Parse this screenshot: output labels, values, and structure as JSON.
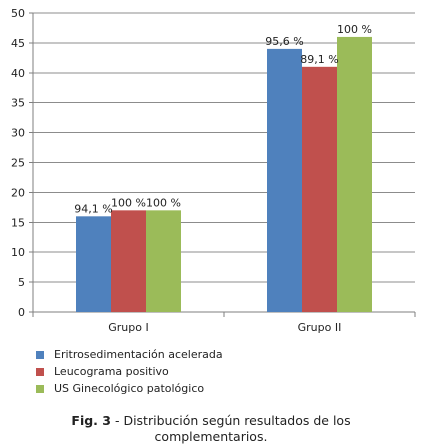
{
  "chart_data": {
    "type": "bar",
    "categories": [
      "Grupo I",
      "Grupo II"
    ],
    "series": [
      {
        "name": "Eritrosedimentación acelerada",
        "values": [
          16,
          44
        ],
        "labels": [
          "94,1 %",
          "95,6 %"
        ]
      },
      {
        "name": "Leucograma positivo",
        "values": [
          17,
          41
        ],
        "labels": [
          "100 %",
          "89,1 %"
        ]
      },
      {
        "name": "US Ginecológico patológico",
        "values": [
          17,
          46
        ],
        "labels": [
          "100 %",
          "100 %"
        ]
      }
    ],
    "ylim": [
      0,
      50
    ],
    "yticks": [
      0,
      5,
      10,
      15,
      20,
      25,
      30,
      35,
      40,
      45,
      50
    ],
    "grid": true,
    "legend_position": "bottom-left",
    "colors": [
      "#4f81bd",
      "#c0504d",
      "#9bbb59"
    ]
  },
  "caption": {
    "label": "Fig. 3",
    "line1": " - Distribución según resultados de los",
    "line2": "complementarios."
  }
}
